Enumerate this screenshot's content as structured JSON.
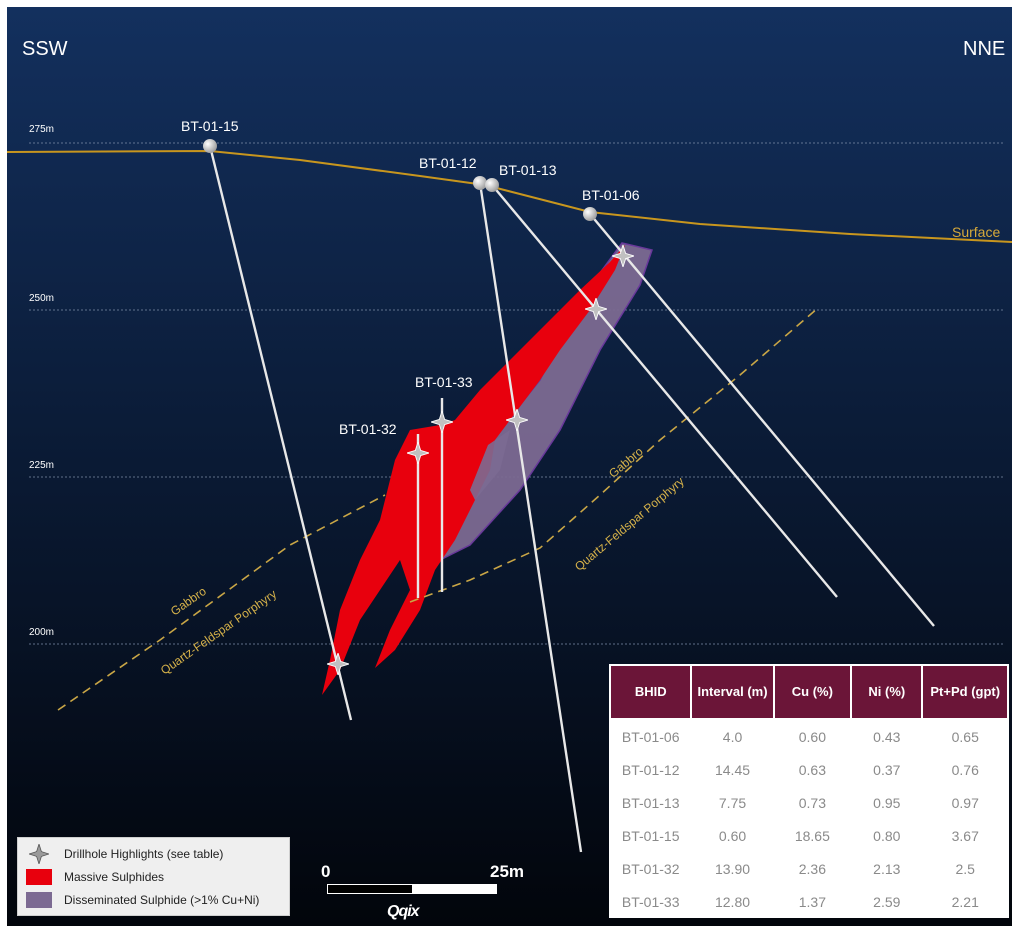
{
  "directions": {
    "left": "SSW",
    "right": "NNE"
  },
  "elevations": [
    "275m",
    "250m",
    "225m",
    "200m"
  ],
  "surface_label": "Surface",
  "drillholes": [
    "BT-01-15",
    "BT-01-12",
    "BT-01-13",
    "BT-01-06",
    "BT-01-33",
    "BT-01-32"
  ],
  "rock_units": {
    "gabbro": "Gabbro",
    "porphyry": "Quartz-Feldspar Porphyry"
  },
  "table": {
    "headers": [
      "BHID",
      "Interval (m)",
      "Cu (%)",
      "Ni (%)",
      "Pt+Pd (gpt)"
    ],
    "rows": [
      [
        "BT-01-06",
        "4.0",
        "0.60",
        "0.43",
        "0.65"
      ],
      [
        "BT-01-12",
        "14.45",
        "0.63",
        "0.37",
        "0.76"
      ],
      [
        "BT-01-13",
        "7.75",
        "0.73",
        "0.95",
        "0.97"
      ],
      [
        "BT-01-15",
        "0.60",
        "18.65",
        "0.80",
        "3.67"
      ],
      [
        "BT-01-32",
        "13.90",
        "2.36",
        "2.13",
        "2.5"
      ],
      [
        "BT-01-33",
        "12.80",
        "1.37",
        "2.59",
        "2.21"
      ]
    ]
  },
  "legend": {
    "highlights": "Drillhole Highlights (see table)",
    "massive": "Massive Sulphides",
    "disseminated": "Disseminated Sulphide (>1% Cu+Ni)"
  },
  "scale": {
    "zero": "0",
    "end": "25m"
  },
  "logo": "Qqix",
  "colors": {
    "massive_sulphide": "#e8000d",
    "disseminated_sulphide": "#7c6a92",
    "surface_line": "#c8961e",
    "contact_line": "#c9a646",
    "table_header": "#6b1538"
  }
}
